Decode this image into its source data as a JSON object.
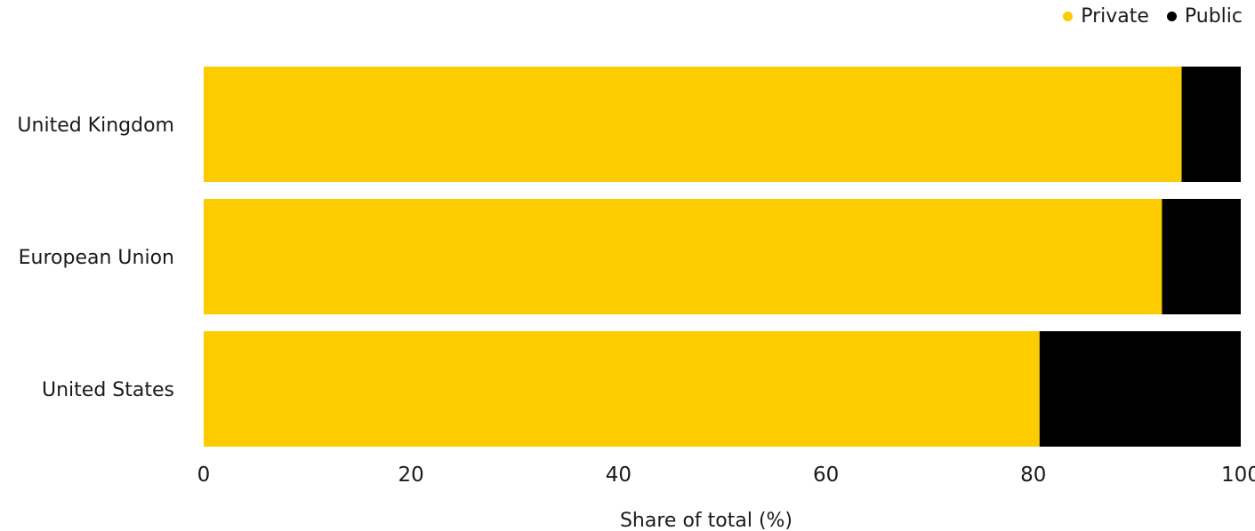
{
  "legend": {
    "items": [
      {
        "label": "Private",
        "color": "#fccc00"
      },
      {
        "label": "Public",
        "color": "#000000"
      }
    ]
  },
  "chart_data": {
    "type": "bar",
    "orientation": "horizontal",
    "stacked": true,
    "categories": [
      "United Kingdom",
      "European Union",
      "United States"
    ],
    "series": [
      {
        "name": "Private",
        "values": [
          94.3,
          92.4,
          80.6
        ],
        "color": "#fccc00"
      },
      {
        "name": "Public",
        "values": [
          5.7,
          7.6,
          19.4
        ],
        "color": "#000000"
      }
    ],
    "xlabel": "Share of total (%)",
    "ylabel": "",
    "xlim": [
      0,
      100
    ],
    "xticks": [
      0,
      20,
      40,
      60,
      80,
      100
    ],
    "grid": false,
    "legend_position": "top-right"
  }
}
